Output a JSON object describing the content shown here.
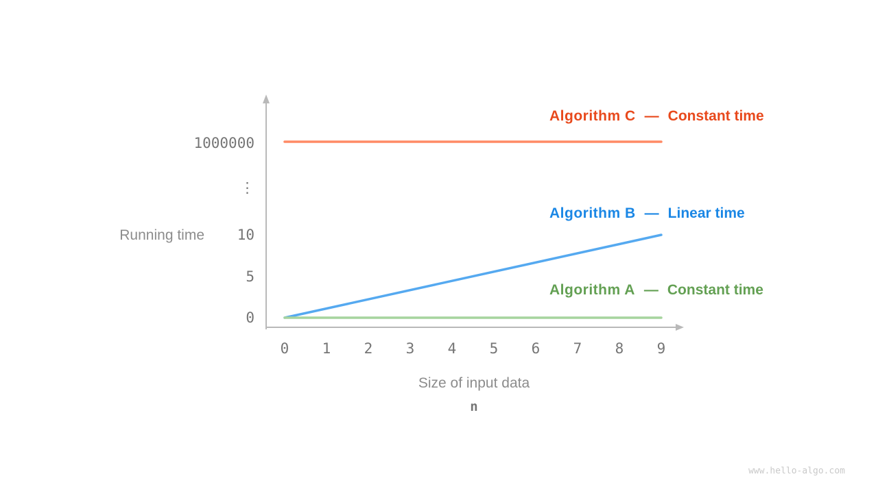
{
  "page": {
    "background": "#ffffff",
    "watermark": "www.hello-algo.com"
  },
  "chart_data": {
    "type": "line",
    "title": "",
    "xlabel": "Size of input data",
    "xlabel_variable": "n",
    "ylabel": "Running time",
    "x_ticks": [
      "0",
      "1",
      "2",
      "3",
      "4",
      "5",
      "6",
      "7",
      "8",
      "9"
    ],
    "x_range": [
      0,
      9
    ],
    "y_axis_note": "broken non-linear axis: 0, 5, 10, …, 1000000",
    "y_ticks": [
      {
        "label": "1000000",
        "value": 1000000
      },
      {
        "label": "⋮",
        "value": null
      },
      {
        "label": "10",
        "value": 10
      },
      {
        "label": "5",
        "value": 5
      },
      {
        "label": "0",
        "value": 0
      }
    ],
    "legend_position": "right of each line",
    "grid": false,
    "series": [
      {
        "name": "Algorithm C",
        "separator": "—",
        "descriptor": "Constant time",
        "complexity": "constant",
        "points": {
          "x": [
            0,
            9
          ],
          "y": [
            1000000,
            1000000
          ]
        },
        "line_color": "#ff8a65",
        "label_color": "#e8491c"
      },
      {
        "name": "Algorithm B",
        "separator": "—",
        "descriptor": "Linear time",
        "complexity": "linear",
        "points": {
          "x": [
            0,
            9
          ],
          "y": [
            0,
            10
          ]
        },
        "line_color": "#55a9f0",
        "label_color": "#1b87e5"
      },
      {
        "name": "Algorithm A",
        "separator": "—",
        "descriptor": "Constant time",
        "complexity": "constant",
        "points": {
          "x": [
            0,
            9
          ],
          "y": [
            0,
            0
          ]
        },
        "line_color": "#a6d49e",
        "label_color": "#63a053"
      }
    ]
  }
}
